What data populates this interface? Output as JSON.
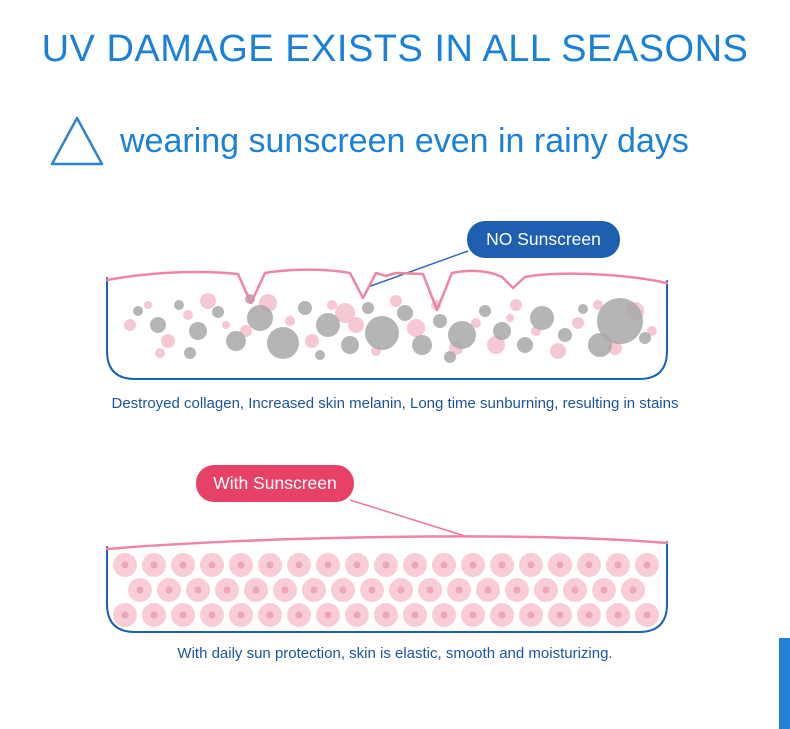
{
  "page": {
    "title": "UV DAMAGE EXISTS IN ALL SEASONS",
    "subtitle": "wearing sunscreen even in rainy days"
  },
  "no_sunscreen": {
    "label": "NO Sunscreen",
    "caption": "Destroyed collagen, Increased skin melanin, Long time sunburning, resulting in stains"
  },
  "with_sunscreen": {
    "label": "With Sunscreen",
    "caption": "With daily sun protection, skin is elastic, smooth and moisturizing."
  },
  "colors": {
    "heading_blue": "#1b80d8",
    "outline_blue": "#1a63b5",
    "label_pill_blue": "#1e5fb0",
    "label_pill_pink": "#e84168",
    "skin_surface_pink": "#ee85a3",
    "healthy_cell_pink": "#f9cdd7",
    "melanin_gray": "#a8a8a8"
  }
}
